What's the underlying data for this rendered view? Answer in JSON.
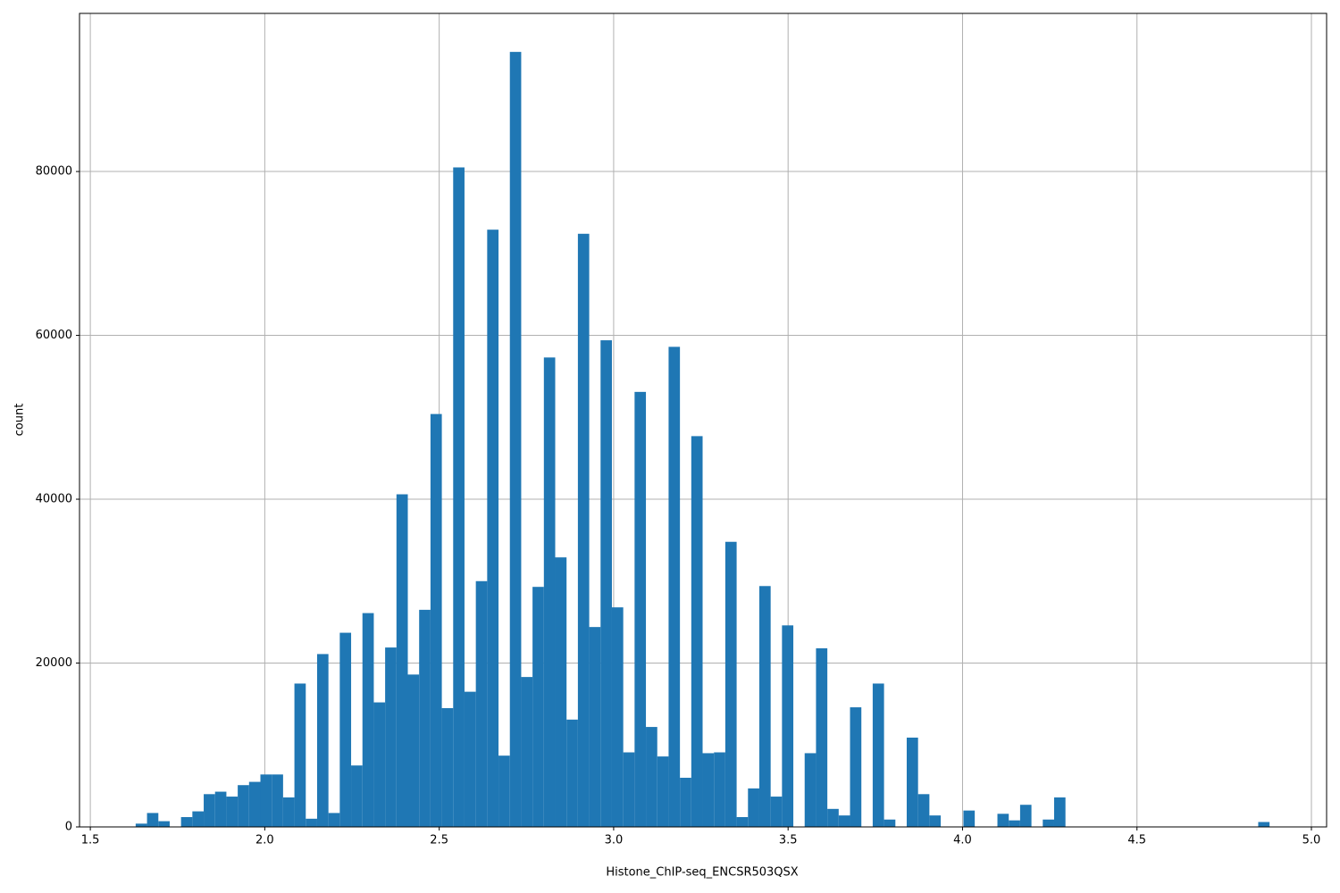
{
  "chart_data": {
    "type": "histogram",
    "x_label": "Histone_ChIP-seq_ENCSR503QSX",
    "y_label": "count",
    "bins": [
      1.63,
      1.6625,
      1.695,
      1.7275,
      1.76,
      1.7925,
      1.825,
      1.8575,
      1.89,
      1.9225,
      1.955,
      1.9875,
      2.02,
      2.0525,
      2.085,
      2.1175,
      2.15,
      2.1825,
      2.215,
      2.2475,
      2.28,
      2.3125,
      2.345,
      2.3775,
      2.41,
      2.4425,
      2.475,
      2.5075,
      2.54,
      2.5725,
      2.605,
      2.6375,
      2.67,
      2.7025,
      2.735,
      2.7675,
      2.8,
      2.8325,
      2.865,
      2.8975,
      2.93,
      2.9625,
      2.995,
      3.0275,
      3.06,
      3.0925,
      3.125,
      3.1575,
      3.19,
      3.2225,
      3.255,
      3.2875,
      3.32,
      3.3525,
      3.385,
      3.4175,
      3.45,
      3.4825,
      3.515,
      3.5475,
      3.58,
      3.6125,
      3.645,
      3.6775,
      3.71,
      3.7425,
      3.775,
      3.8075,
      3.84,
      3.8725,
      3.905,
      3.9375,
      3.97,
      4.0025,
      4.035,
      4.0675,
      4.1,
      4.1325,
      4.165,
      4.1975,
      4.23,
      4.2625,
      4.295,
      4.3275,
      4.36,
      4.3925,
      4.425,
      4.4575,
      4.49,
      4.5225,
      4.555,
      4.5875,
      4.62,
      4.6525,
      4.685,
      4.7175,
      4.75,
      4.7825,
      4.815,
      4.8475,
      4.88
    ],
    "values": [
      400,
      1700,
      700,
      0,
      1200,
      1900,
      4000,
      4300,
      3700,
      5100,
      5500,
      6400,
      6400,
      3600,
      17500,
      1000,
      21100,
      1700,
      23700,
      7500,
      26100,
      15200,
      21900,
      40600,
      18600,
      26500,
      50400,
      14500,
      80500,
      16500,
      30000,
      72900,
      8700,
      94600,
      18300,
      29300,
      57300,
      32900,
      13100,
      72400,
      24400,
      59400,
      26800,
      9100,
      53100,
      12200,
      8600,
      58600,
      6000,
      47700,
      9000,
      9100,
      34800,
      1200,
      4700,
      29400,
      3700,
      24600,
      0,
      9000,
      21800,
      2200,
      1400,
      14600,
      0,
      17500,
      900,
      0,
      10900,
      4000,
      1400,
      0,
      0,
      2000,
      0,
      0,
      1600,
      800,
      2700,
      0,
      900,
      3600,
      0,
      0,
      0,
      0,
      0,
      0,
      0,
      0,
      0,
      0,
      0,
      0,
      0,
      0,
      0,
      0,
      0,
      600
    ],
    "color": "#1f77b4",
    "xlim": [
      1.469,
      5.0435
    ],
    "ylim": [
      0,
      99300
    ],
    "xticks": [
      1.5,
      {
        "value": 2,
        "label": "2.0"
      },
      2.5,
      {
        "value": 3,
        "label": "3.0"
      },
      3.5,
      {
        "value": 4,
        "label": "4.0"
      },
      4.5,
      {
        "value": 5,
        "label": "5.0"
      }
    ],
    "yticks": [
      0,
      20000,
      40000,
      60000,
      80000
    ],
    "grid": true
  }
}
